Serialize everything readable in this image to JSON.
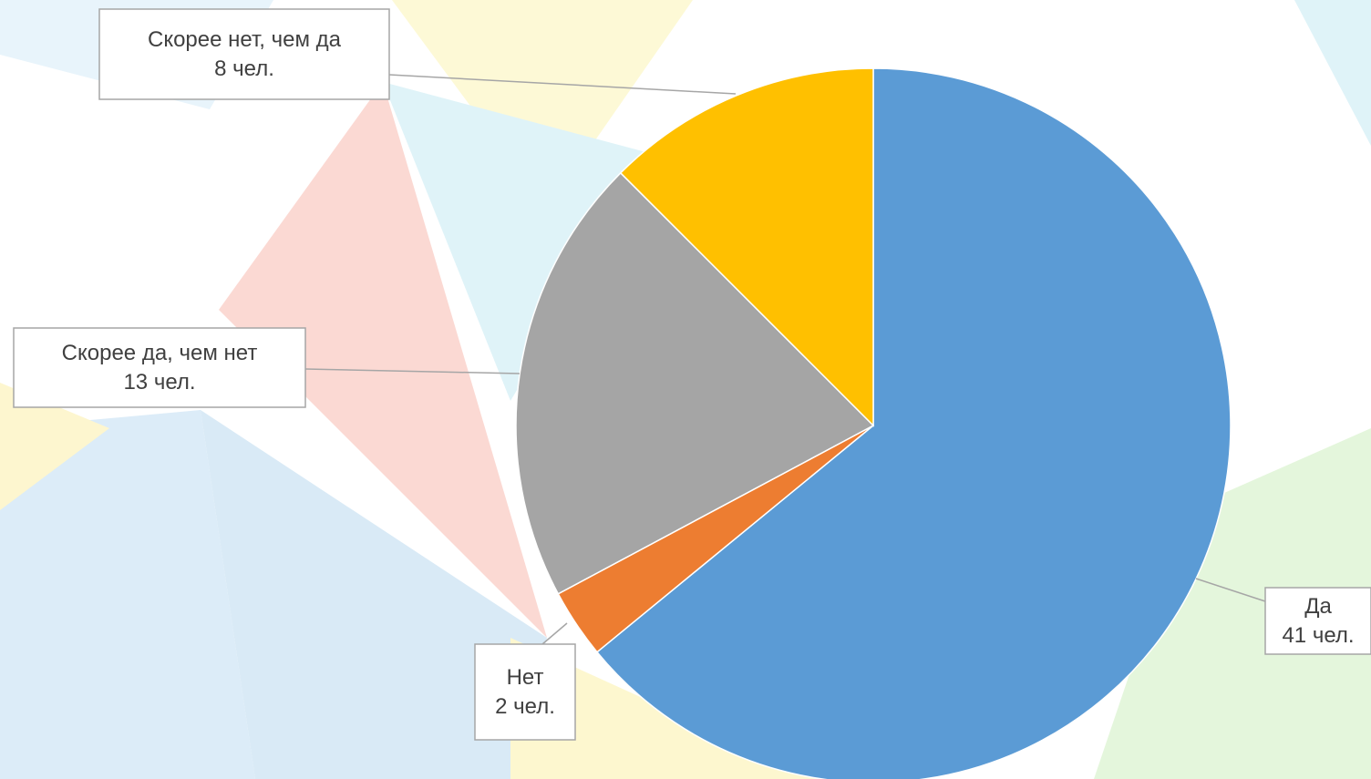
{
  "chart_data": {
    "type": "pie",
    "categories": [
      "Да",
      "Нет",
      "Скорее да, чем нет",
      "Скорее нет, чем да"
    ],
    "values": [
      41,
      2,
      13,
      8
    ],
    "value_labels": [
      "41 чел.",
      "2 чел.",
      "13 чел.",
      "8 чел."
    ],
    "colors": [
      "#5b9bd5",
      "#ed7d31",
      "#a5a5a5",
      "#ffc000"
    ]
  }
}
